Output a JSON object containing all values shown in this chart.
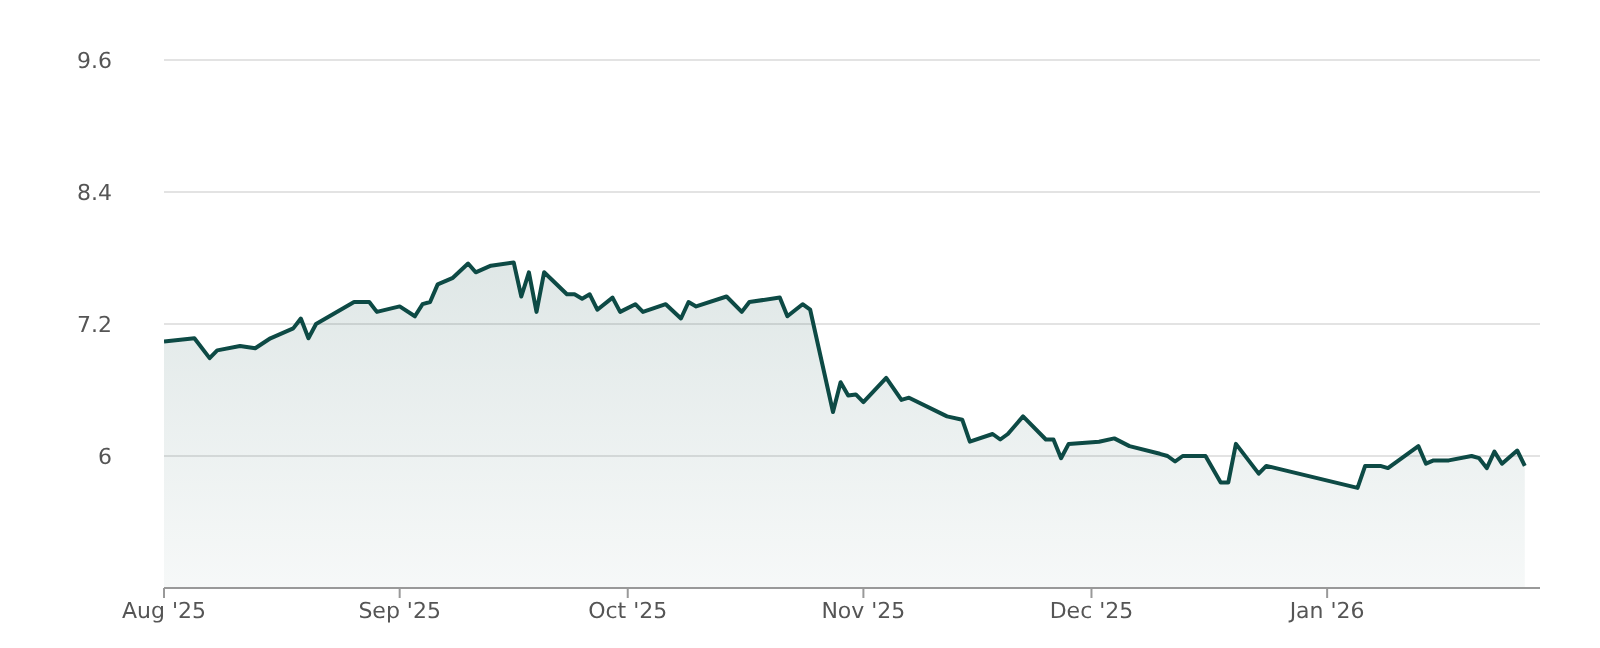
{
  "chart_data": {
    "type": "area",
    "xlim": [
      "2025-08-01",
      "2026-01-29"
    ],
    "ylim": [
      4.8,
      9.6
    ],
    "yticks": [
      {
        "value": 4.8,
        "label": null
      },
      6,
      7.2,
      8.4,
      9.6
    ],
    "xticks": [
      {
        "value": "2025-08-01",
        "label": "Aug '25"
      },
      {
        "value": "2025-09-01",
        "label": "Sep '25"
      },
      {
        "value": "2025-10-01",
        "label": "Oct '25"
      },
      {
        "value": "2025-11-01",
        "label": "Nov '25"
      },
      {
        "value": "2025-12-01",
        "label": "Dec '25"
      },
      {
        "value": "2026-01-01",
        "label": "Jan '26"
      }
    ],
    "grid": "y",
    "legend": false,
    "marker": "none",
    "line_style": "solid",
    "series": [
      {
        "color": "#0d4a45",
        "x": [
          "2025-08-01",
          "2025-08-05",
          "2025-08-07",
          "2025-08-08",
          "2025-08-11",
          "2025-08-13",
          "2025-08-15",
          "2025-08-18",
          "2025-08-19",
          "2025-08-20",
          "2025-08-21",
          "2025-08-26",
          "2025-08-28",
          "2025-08-29",
          "2025-09-01",
          "2025-09-03",
          "2025-09-04",
          "2025-09-05",
          "2025-09-06",
          "2025-09-08",
          "2025-09-10",
          "2025-09-11",
          "2025-09-13",
          "2025-09-16",
          "2025-09-17",
          "2025-09-18",
          "2025-09-19",
          "2025-09-20",
          "2025-09-23",
          "2025-09-24",
          "2025-09-25",
          "2025-09-26",
          "2025-09-27",
          "2025-09-29",
          "2025-09-30",
          "2025-10-02",
          "2025-10-03",
          "2025-10-06",
          "2025-10-08",
          "2025-10-09",
          "2025-10-10",
          "2025-10-14",
          "2025-10-16",
          "2025-10-17",
          "2025-10-21",
          "2025-10-22",
          "2025-10-24",
          "2025-10-25",
          "2025-10-28",
          "2025-10-29",
          "2025-10-30",
          "2025-10-31",
          "2025-11-01",
          "2025-11-04",
          "2025-11-06",
          "2025-11-07",
          "2025-11-12",
          "2025-11-14",
          "2025-11-15",
          "2025-11-18",
          "2025-11-19",
          "2025-11-20",
          "2025-11-22",
          "2025-11-25",
          "2025-11-26",
          "2025-11-27",
          "2025-11-28",
          "2025-12-02",
          "2025-12-04",
          "2025-12-06",
          "2025-12-10",
          "2025-12-11",
          "2025-12-12",
          "2025-12-13",
          "2025-12-16",
          "2025-12-18",
          "2025-12-19",
          "2025-12-20",
          "2025-12-23",
          "2025-12-24",
          "2026-01-05",
          "2026-01-06",
          "2026-01-08",
          "2026-01-09",
          "2026-01-13",
          "2026-01-14",
          "2026-01-15",
          "2026-01-17",
          "2026-01-20",
          "2026-01-21",
          "2026-01-22",
          "2026-01-23",
          "2026-01-24",
          "2026-01-26",
          "2026-01-27"
        ],
        "values": [
          7.04,
          7.07,
          6.89,
          6.96,
          7.0,
          6.98,
          7.07,
          7.16,
          7.25,
          7.07,
          7.2,
          7.4,
          7.4,
          7.31,
          7.36,
          7.27,
          7.38,
          7.4,
          7.56,
          7.62,
          7.75,
          7.67,
          7.73,
          7.76,
          7.45,
          7.67,
          7.31,
          7.67,
          7.47,
          7.47,
          7.43,
          7.47,
          7.33,
          7.44,
          7.31,
          7.38,
          7.31,
          7.38,
          7.25,
          7.4,
          7.36,
          7.45,
          7.31,
          7.4,
          7.44,
          7.27,
          7.38,
          7.33,
          6.4,
          6.67,
          6.55,
          6.56,
          6.49,
          6.71,
          6.51,
          6.53,
          6.36,
          6.33,
          6.13,
          6.2,
          6.15,
          6.2,
          6.36,
          6.15,
          6.15,
          5.98,
          6.11,
          6.13,
          6.16,
          6.09,
          6.02,
          6.0,
          5.95,
          6.0,
          6.0,
          5.76,
          5.76,
          6.11,
          5.84,
          5.91,
          5.71,
          5.91,
          5.91,
          5.89,
          6.09,
          5.93,
          5.96,
          5.96,
          6.0,
          5.98,
          5.89,
          6.04,
          5.93,
          6.05,
          5.91
        ]
      }
    ]
  }
}
